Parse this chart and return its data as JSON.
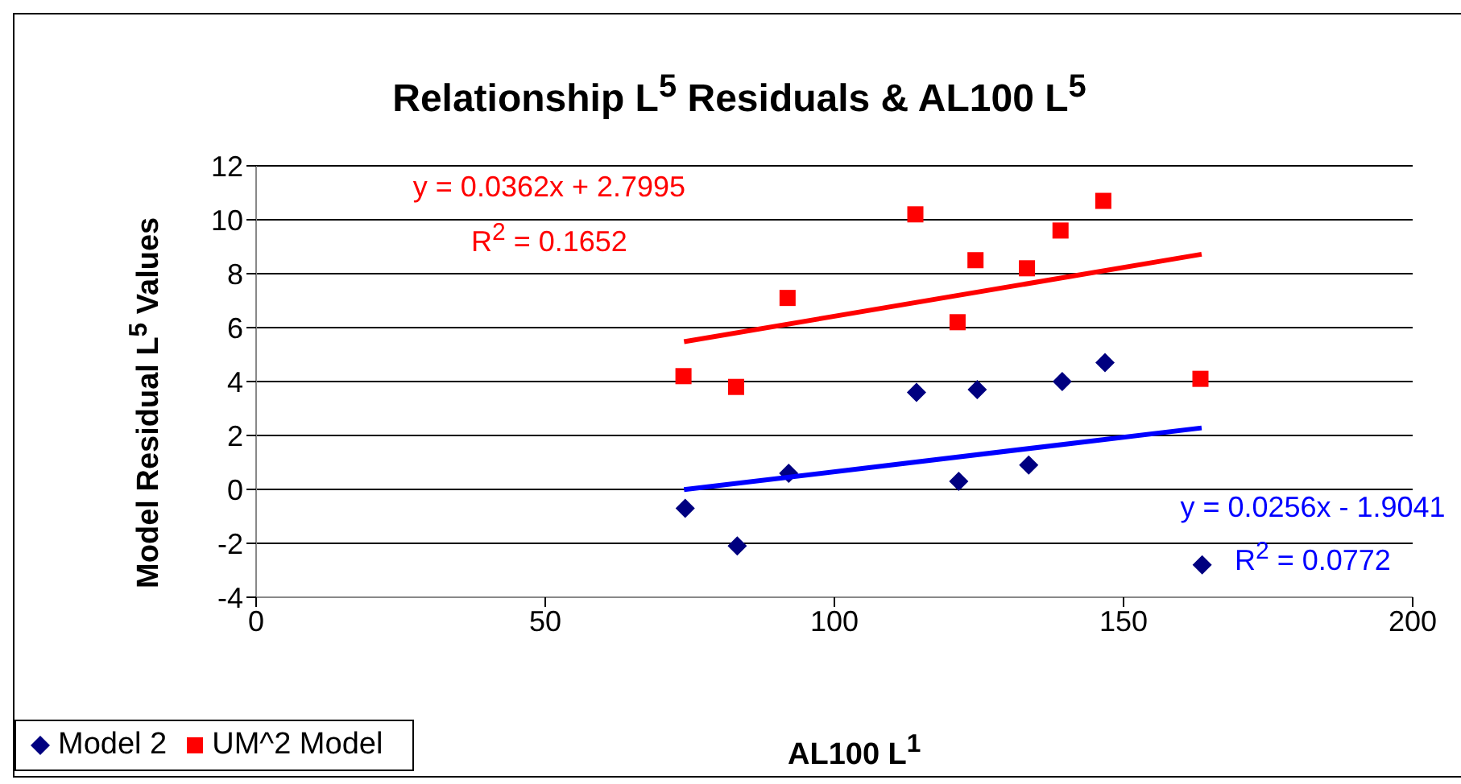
{
  "chart_data": {
    "type": "scatter",
    "title": "Relationship L$^{5}$ Residuals & AL100 L$^{5}$",
    "xlabel": "AL100 L$^{1}$",
    "ylabel": "Model Residual L$^{5}$ Values",
    "xlim": [
      0,
      200
    ],
    "xticks": [
      0,
      50,
      100,
      150,
      200
    ],
    "ylim": [
      -4,
      12
    ],
    "yticks": [
      -4,
      -2,
      0,
      2,
      4,
      6,
      8,
      10,
      12
    ],
    "grid": "y",
    "legend": "bottom left",
    "series": [
      {
        "name": "Model 2",
        "type": "scatter",
        "marker": "diamond",
        "color": "#000080",
        "x": [
          74.2,
          83.2,
          92.1,
          114.2,
          121.5,
          124.7,
          133.6,
          139.4,
          146.8,
          163.6
        ],
        "values": [
          -0.7,
          -2.1,
          0.6,
          3.6,
          0.3,
          3.7,
          0.9,
          4.0,
          4.7,
          -2.8
        ]
      },
      {
        "name": "UM^2 Model",
        "type": "scatter",
        "marker": "square",
        "color": "#ff0000",
        "x": [
          73.9,
          83.0,
          91.9,
          114.0,
          121.3,
          124.4,
          133.3,
          139.1,
          146.5,
          163.3
        ],
        "values": [
          4.2,
          3.8,
          7.1,
          10.2,
          6.2,
          8.5,
          8.2,
          9.6,
          10.7,
          4.1
        ]
      },
      {
        "type": "line",
        "marker": "none",
        "color": "#ff0000",
        "x": [
          74,
          163.5
        ],
        "values": [
          5.48,
          8.72
        ]
      },
      {
        "type": "line",
        "marker": "none",
        "color": "#0000ff",
        "x": [
          74,
          163.5
        ],
        "values": [
          -0.01,
          2.28
        ]
      }
    ],
    "annotations": [
      "y = 0.0362x + 2.7995",
      "R$^{2}$ = 0.1652",
      "y = 0.0256x - 1.9041",
      "R$^{2}$ = 0.0772"
    ]
  }
}
